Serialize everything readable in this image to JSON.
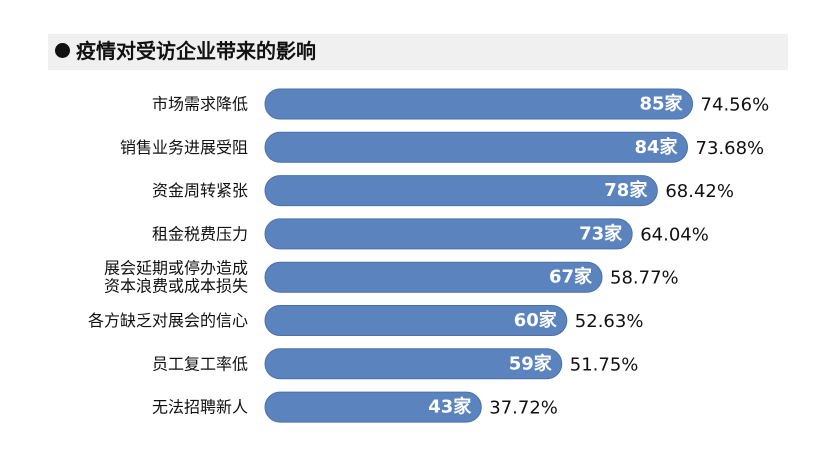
{
  "title": "疫情对受访企业带来的影响",
  "colors": {
    "bar": "#5b84bf",
    "bar_edge": "#4a70a8",
    "title_band": "#f0f0f0"
  },
  "chart_data": {
    "type": "bar",
    "orientation": "horizontal",
    "categories": [
      "市场需求降低",
      "销售业务进展受阻",
      "资金周转紧张",
      "租金税费压力",
      "展会延期或停办造成资本浪费或成本损失",
      "各方缺乏对展会的信心",
      "员工复工率低",
      "无法招聘新人"
    ],
    "category_lines": [
      [
        "市场需求降低"
      ],
      [
        "销售业务进展受阻"
      ],
      [
        "资金周转紧张"
      ],
      [
        "租金税费压力"
      ],
      [
        "展会延期或停办造成",
        "资本浪费或成本损失"
      ],
      [
        "各方缺乏对展会的信心"
      ],
      [
        "员工复工率低"
      ],
      [
        "无法招聘新人"
      ]
    ],
    "values": [
      85,
      84,
      78,
      73,
      67,
      60,
      59,
      43
    ],
    "value_labels": [
      "85家",
      "84家",
      "78家",
      "73家",
      "67家",
      "60家",
      "59家",
      "43家"
    ],
    "percent_labels": [
      "74.56%",
      "73.68%",
      "68.42%",
      "64.04%",
      "58.77%",
      "52.63%",
      "51.75%",
      "37.72%"
    ],
    "grid": false,
    "legend": "none"
  }
}
